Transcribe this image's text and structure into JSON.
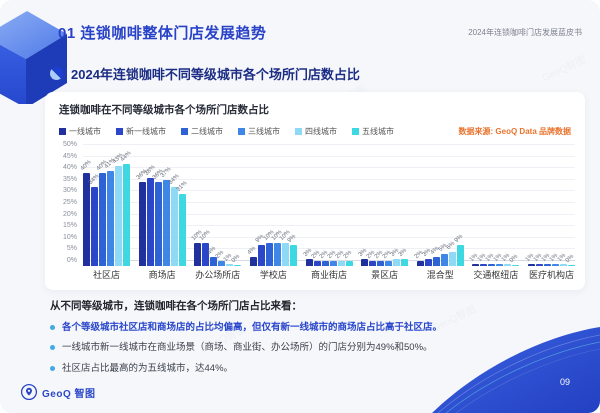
{
  "header": {
    "section_number_title": "01 连锁咖啡整体门店发展趋势",
    "doc_title": "2024年连锁咖啡门店发展蓝皮书"
  },
  "section": {
    "title": "2024年连锁咖啡不同等级城市各个场所门店数占比"
  },
  "chart_data": {
    "type": "bar",
    "title": "连锁咖啡在不同等级城市各个场所门店数占比",
    "source_note": "数据来源: GeoQ Data 品牌数据",
    "categories": [
      "社区店",
      "商场店",
      "办公场所店",
      "学校店",
      "商业街店",
      "景区店",
      "混合型",
      "交通枢纽店",
      "医疗机构店"
    ],
    "series": [
      {
        "name": "一线城市",
        "values": [
          40,
          36,
          10,
          4,
          3,
          3,
          2,
          1,
          1
        ]
      },
      {
        "name": "新一线城市",
        "values": [
          34,
          38,
          10,
          9,
          2,
          2,
          3,
          1,
          1
        ]
      },
      {
        "name": "二线城市",
        "values": [
          40,
          36,
          4,
          10,
          2,
          2,
          4,
          1,
          1
        ]
      },
      {
        "name": "三线城市",
        "values": [
          41,
          37,
          2,
          10,
          2,
          2,
          5,
          1,
          1
        ]
      },
      {
        "name": "四线城市",
        "values": [
          43,
          34,
          1,
          10,
          2,
          3,
          6,
          1,
          1
        ]
      },
      {
        "name": "五线城市",
        "values": [
          44,
          31,
          0,
          9,
          2,
          3,
          9,
          0,
          0
        ]
      }
    ],
    "colors": [
      "#20309c",
      "#2b46c9",
      "#2d63d4",
      "#3f87e6",
      "#8ed9f5",
      "#3ed8e2"
    ],
    "ylim": [
      0,
      50
    ],
    "ytick_step": 5,
    "value_suffix": "%",
    "grid": true,
    "legend_position": "top"
  },
  "insights": {
    "heading": "从不同等级城市，连锁咖啡在各个场所门店占比来看：",
    "bullets": [
      {
        "text": "各个等级城市社区店和商场店的占比均偏高，但仅有新一线城市的商场店占比高于社区店。",
        "emphasis": true
      },
      {
        "text": "一线城市新一线城市在商业场景（商场、商业街、办公场所）的门店分别为49%和50%。",
        "emphasis": false
      },
      {
        "text": "社区店占比最高的为五线城市，达44%。",
        "emphasis": false
      }
    ]
  },
  "footer": {
    "logo_text": "GeoQ 智图",
    "page_number": "09",
    "watermark": "GeoQ智图"
  },
  "colors": {
    "accent_blue": "#2842c8",
    "title_navy": "#1c2d85",
    "source_orange": "#e8742e",
    "bullet_dot": "#41aae4"
  }
}
